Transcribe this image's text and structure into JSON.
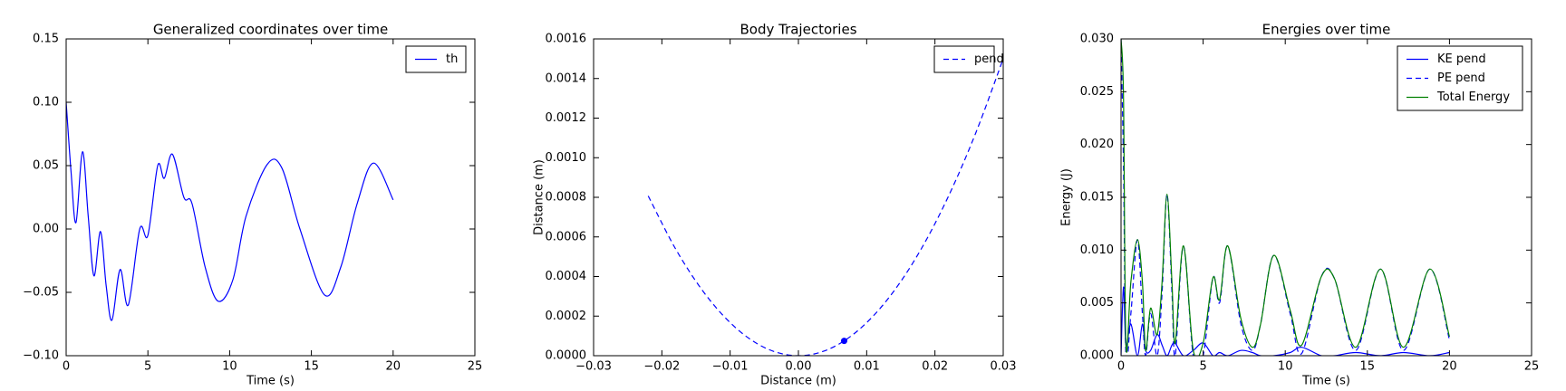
{
  "chart_data": [
    {
      "type": "line",
      "title": "Generalized coordinates over time",
      "x_label": "Time (s)",
      "x": [
        0,
        0.3,
        0.6,
        1.0,
        1.35,
        1.7,
        2.1,
        2.45,
        2.8,
        3.3,
        3.8,
        4.5,
        5.0,
        5.6,
        6.0,
        6.5,
        7.2,
        7.7,
        8.5,
        9.3,
        10.2,
        11.0,
        12.3,
        13.2,
        14.3,
        15.8,
        16.8,
        17.8,
        18.8,
        20.0
      ],
      "series": [
        {
          "name": "th",
          "color": "#0000ff",
          "dash": false,
          "values": [
            0.1,
            0.045,
            0.005,
            0.061,
            0.01,
            -0.037,
            -0.002,
            -0.045,
            -0.072,
            -0.032,
            -0.06,
            0.0,
            -0.005,
            0.05,
            0.04,
            0.059,
            0.025,
            0.02,
            -0.03,
            -0.057,
            -0.04,
            0.01,
            0.051,
            0.048,
            0.0,
            -0.052,
            -0.03,
            0.02,
            0.052,
            0.023
          ]
        }
      ],
      "xlim": [
        0,
        25
      ],
      "xticks": [
        0,
        5,
        10,
        15,
        20,
        25
      ],
      "ylim": [
        -0.1,
        0.15
      ],
      "yticks": [
        {
          "value": -0.1,
          "label": "−0.10"
        },
        {
          "value": -0.05,
          "label": "−0.05"
        },
        {
          "value": 0,
          "label": "0.00"
        },
        {
          "value": 0.05,
          "label": "0.05"
        },
        {
          "value": 0.1,
          "label": "0.10"
        },
        {
          "value": 0.15,
          "label": "0.15"
        }
      ],
      "legend": "upper right"
    },
    {
      "type": "line",
      "title": "Body Trajectories",
      "x_label": "Distance (m)",
      "y_label": "Distance (m)",
      "x": [
        -0.022,
        -0.018,
        -0.014,
        -0.01,
        -0.006,
        -0.002,
        0.002,
        0.006,
        0.01,
        0.014,
        0.018,
        0.022,
        0.026,
        0.03
      ],
      "series": [
        {
          "name": "pend",
          "color": "#0000ff",
          "dash": true,
          "values": [
            0.000807,
            0.00054,
            0.000327,
            0.000167,
            6e-05,
            6.7e-06,
            6.7e-06,
            6e-05,
            0.000167,
            0.000327,
            0.00054,
            0.000807,
            0.001127,
            0.0015
          ]
        }
      ],
      "marker": {
        "x": 0.0067,
        "y": 7.5e-05,
        "color": "#0000ff"
      },
      "xlim": [
        -0.03,
        0.03
      ],
      "xticks": [
        {
          "value": -0.03,
          "label": "−0.03"
        },
        {
          "value": -0.02,
          "label": "−0.02"
        },
        {
          "value": -0.01,
          "label": "−0.01"
        },
        {
          "value": 0,
          "label": "0.00"
        },
        {
          "value": 0.01,
          "label": "0.01"
        },
        {
          "value": 0.02,
          "label": "0.02"
        },
        {
          "value": 0.03,
          "label": "0.03"
        }
      ],
      "ylim": [
        0,
        0.0016
      ],
      "yticks": [
        {
          "value": 0,
          "label": "0.0000"
        },
        {
          "value": 0.0002,
          "label": "0.0002"
        },
        {
          "value": 0.0004,
          "label": "0.0004"
        },
        {
          "value": 0.0006,
          "label": "0.0006"
        },
        {
          "value": 0.0008,
          "label": "0.0008"
        },
        {
          "value": 0.001,
          "label": "0.0010"
        },
        {
          "value": 0.0012,
          "label": "0.0012"
        },
        {
          "value": 0.0014,
          "label": "0.0014"
        },
        {
          "value": 0.0016,
          "label": "0.0016"
        }
      ],
      "legend": "upper right"
    },
    {
      "type": "line",
      "title": "Energies over time",
      "x_label": "Time (s)",
      "y_label": "Energy (J)",
      "x": [
        0,
        0.15,
        0.3,
        0.6,
        1.0,
        1.3,
        1.5,
        1.8,
        2.2,
        2.5,
        2.8,
        3.1,
        3.3,
        3.8,
        4.4,
        5.0,
        5.6,
        6.0,
        6.5,
        7.3,
        8.0,
        8.5,
        9.3,
        10.3,
        11.0,
        12.2,
        13.0,
        14.3,
        15.8,
        17.2,
        18.8,
        20.0
      ],
      "series": [
        {
          "name": "KE pend",
          "color": "#0000ff",
          "dash": false,
          "values": [
            0,
            0.0065,
            0.001,
            0.003,
            0,
            0.003,
            0.0005,
            0.0005,
            0.002,
            0.001,
            0,
            0.001,
            0.0012,
            0,
            0.0005,
            0.0012,
            0,
            0.0003,
            0,
            0.0005,
            0.0003,
            0,
            0,
            0.0003,
            0.0008,
            0,
            0,
            0.0003,
            0,
            0.0003,
            0,
            0.0003
          ]
        },
        {
          "name": "PE pend",
          "color": "#0000ff",
          "dash": true,
          "values": [
            0.03,
            0.018,
            0.0,
            0.004,
            0.011,
            0.004,
            0.0,
            0.004,
            0.0,
            0.006,
            0.0153,
            0.006,
            0.0,
            0.0104,
            0.0,
            0.0,
            0.0074,
            0.005,
            0.0104,
            0.003,
            0.0005,
            0.003,
            0.0095,
            0.004,
            0.0002,
            0.0075,
            0.0073,
            0.0005,
            0.0082,
            0.0005,
            0.0082,
            0.0015
          ]
        },
        {
          "name": "Total Energy",
          "color": "#008000",
          "dash": false,
          "values": [
            0.03,
            0.0245,
            0.001,
            0.007,
            0.011,
            0.007,
            0.0005,
            0.0045,
            0.002,
            0.007,
            0.0153,
            0.007,
            0.0012,
            0.0104,
            0.0005,
            0.0012,
            0.0074,
            0.0053,
            0.0104,
            0.0035,
            0.0008,
            0.003,
            0.0095,
            0.0043,
            0.001,
            0.0075,
            0.0073,
            0.0008,
            0.0082,
            0.0008,
            0.0082,
            0.0018
          ]
        }
      ],
      "xlim": [
        0,
        25
      ],
      "xticks": [
        0,
        5,
        10,
        15,
        20,
        25
      ],
      "ylim": [
        0,
        0.03
      ],
      "yticks": [
        {
          "value": 0,
          "label": "0.000"
        },
        {
          "value": 0.005,
          "label": "0.005"
        },
        {
          "value": 0.01,
          "label": "0.010"
        },
        {
          "value": 0.015,
          "label": "0.015"
        },
        {
          "value": 0.02,
          "label": "0.020"
        },
        {
          "value": 0.025,
          "label": "0.025"
        },
        {
          "value": 0.03,
          "label": "0.030"
        }
      ],
      "legend": "upper right"
    }
  ]
}
